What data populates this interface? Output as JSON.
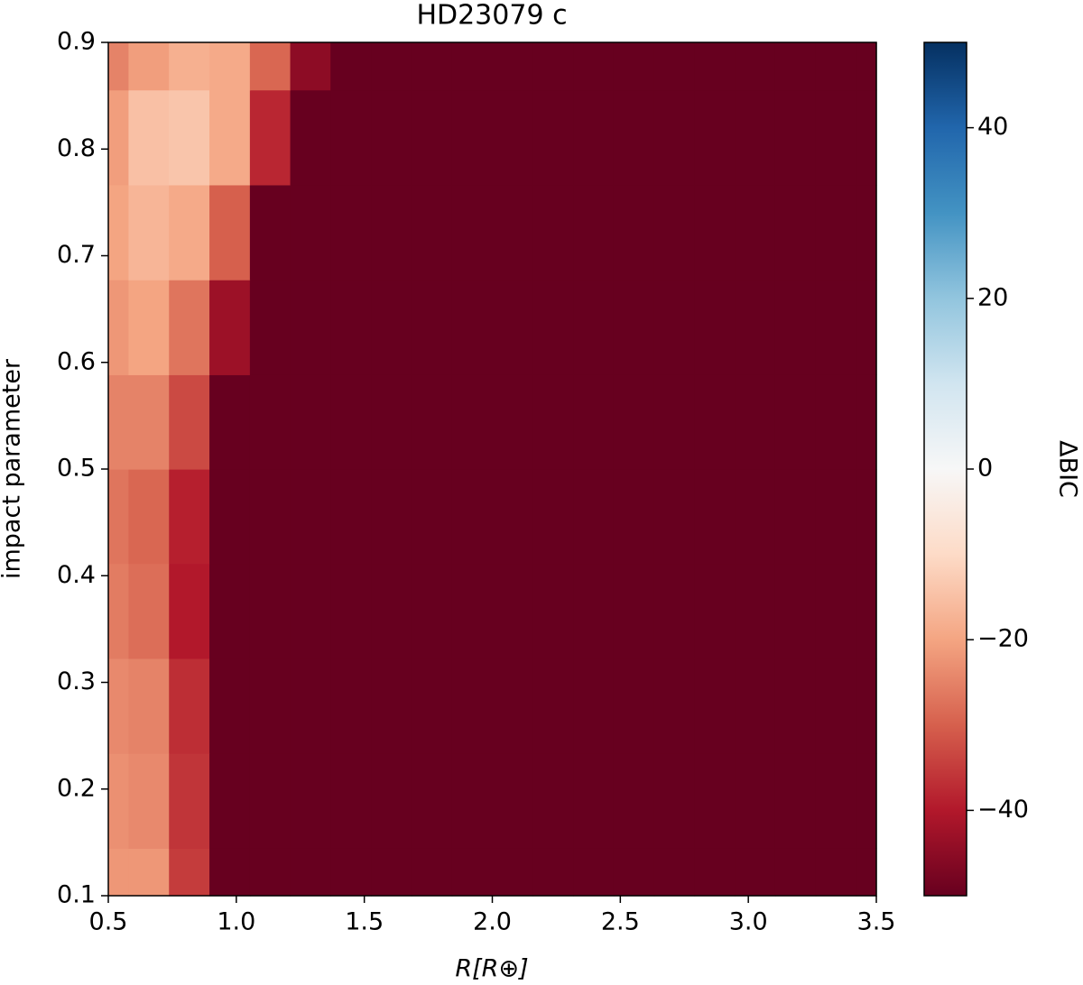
{
  "chart_data": {
    "type": "heatmap",
    "title": "HD23079 c",
    "x_label": "R[R⊕]",
    "y_label": "impact parameter",
    "colorbar_label": "ΔBIC",
    "x": [
      0.5,
      0.658,
      0.816,
      0.974,
      1.132,
      1.289,
      1.447,
      1.605,
      1.763,
      1.921,
      2.079,
      2.237,
      2.395,
      2.553,
      2.711,
      2.868,
      3.026,
      3.184,
      3.342,
      3.5
    ],
    "y": [
      0.1,
      0.189,
      0.278,
      0.367,
      0.456,
      0.544,
      0.633,
      0.722,
      0.811,
      0.9
    ],
    "z": [
      [
        -22,
        -22,
        -35,
        -50,
        -50,
        -50,
        -50,
        -50,
        -50,
        -50,
        -50,
        -50,
        -50,
        -50,
        -50,
        -50,
        -50,
        -50,
        -50,
        -50
      ],
      [
        -23,
        -24,
        -36,
        -50,
        -50,
        -50,
        -50,
        -50,
        -50,
        -50,
        -50,
        -50,
        -50,
        -50,
        -50,
        -50,
        -50,
        -50,
        -50,
        -50
      ],
      [
        -24,
        -25,
        -37,
        -50,
        -50,
        -50,
        -50,
        -50,
        -50,
        -50,
        -50,
        -50,
        -50,
        -50,
        -50,
        -50,
        -50,
        -50,
        -50,
        -50
      ],
      [
        -26,
        -28,
        -40,
        -50,
        -50,
        -50,
        -50,
        -50,
        -50,
        -50,
        -50,
        -50,
        -50,
        -50,
        -50,
        -50,
        -50,
        -50,
        -50,
        -50
      ],
      [
        -27,
        -29,
        -39,
        -50,
        -50,
        -50,
        -50,
        -50,
        -50,
        -50,
        -50,
        -50,
        -50,
        -50,
        -50,
        -50,
        -50,
        -50,
        -50,
        -50
      ],
      [
        -25,
        -25,
        -33,
        -50,
        -50,
        -50,
        -50,
        -50,
        -50,
        -50,
        -50,
        -50,
        -50,
        -50,
        -50,
        -50,
        -50,
        -50,
        -50,
        -50
      ],
      [
        -22,
        -20,
        -27,
        -43,
        -50,
        -50,
        -50,
        -50,
        -50,
        -50,
        -50,
        -50,
        -50,
        -50,
        -50,
        -50,
        -50,
        -50,
        -50,
        -50
      ],
      [
        -20,
        -17,
        -19,
        -30,
        -50,
        -50,
        -50,
        -50,
        -50,
        -50,
        -50,
        -50,
        -50,
        -50,
        -50,
        -50,
        -50,
        -50,
        -50,
        -50
      ],
      [
        -21,
        -15,
        -14,
        -19,
        -38,
        -50,
        -50,
        -50,
        -50,
        -50,
        -50,
        -50,
        -50,
        -50,
        -50,
        -50,
        -50,
        -50,
        -50,
        -50
      ],
      [
        -25,
        -21,
        -18,
        -19,
        -29,
        -45,
        -50,
        -50,
        -50,
        -50,
        -50,
        -50,
        -50,
        -50,
        -50,
        -50,
        -50,
        -50,
        -50,
        -50
      ]
    ],
    "xlim": [
      0.5,
      3.5
    ],
    "xticks": [
      0.5,
      {
        "value": 1,
        "label": "1.0"
      },
      1.5,
      {
        "value": 2,
        "label": "2.0"
      },
      2.5,
      {
        "value": 3,
        "label": "3.0"
      },
      3.5
    ],
    "ylim": [
      0.1,
      0.9
    ],
    "yticks": [
      0.1,
      0.2,
      0.3,
      0.4,
      0.5,
      0.6,
      0.7,
      0.8,
      0.9
    ],
    "zlim": [
      -50,
      50
    ],
    "zticks": [
      {
        "value": -40,
        "label": "−40"
      },
      {
        "value": -20,
        "label": "−20"
      },
      0,
      20,
      40
    ],
    "colorscale": [
      "#67001f",
      "#b2182b",
      "#d6604d",
      "#f4a582",
      "#fddbc7",
      "#f7f7f7",
      "#d1e5f0",
      "#92c5de",
      "#4393c3",
      "#2166ac",
      "#053061"
    ]
  }
}
